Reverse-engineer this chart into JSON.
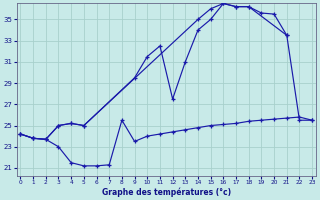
{
  "xlabel": "Graphe des températures (°c)",
  "bg_color": "#c8eae8",
  "line_color": "#1a1aaa",
  "grid_color": "#a8d0cc",
  "yticks": [
    21,
    23,
    25,
    27,
    29,
    31,
    33,
    35
  ],
  "xticks": [
    0,
    1,
    2,
    3,
    4,
    5,
    6,
    7,
    8,
    9,
    10,
    11,
    12,
    13,
    14,
    15,
    16,
    17,
    18,
    19,
    20,
    21,
    22,
    23
  ],
  "ylim": [
    20.2,
    36.5
  ],
  "xlim": [
    -0.3,
    23.3
  ],
  "line_A_x": [
    0,
    1,
    2,
    3,
    4,
    5,
    14,
    15,
    16,
    17,
    18,
    19,
    20,
    21
  ],
  "line_A_y": [
    24.2,
    23.8,
    23.7,
    25.0,
    25.2,
    25.0,
    35.0,
    36.0,
    36.5,
    36.2,
    36.2,
    35.6,
    35.5,
    33.5
  ],
  "line_B_x": [
    0,
    1,
    2,
    3,
    4,
    5,
    9,
    10,
    11,
    12,
    13,
    14,
    15,
    16,
    17,
    18,
    21,
    22,
    23
  ],
  "line_B_y": [
    24.2,
    23.8,
    23.7,
    25.0,
    25.2,
    25.0,
    29.5,
    31.5,
    32.5,
    27.5,
    31.0,
    34.0,
    35.0,
    36.5,
    36.2,
    36.2,
    33.5,
    25.5,
    25.5
  ],
  "line_C_x": [
    0,
    1,
    2,
    3,
    4,
    5,
    6,
    7,
    8,
    9,
    10,
    11,
    12,
    13,
    14,
    15,
    16,
    17,
    18,
    19,
    20,
    21,
    22,
    23
  ],
  "line_C_y": [
    24.2,
    23.8,
    23.7,
    23.0,
    21.5,
    21.2,
    21.2,
    21.3,
    25.5,
    23.5,
    24.0,
    24.2,
    24.4,
    24.6,
    24.8,
    25.0,
    25.1,
    25.2,
    25.4,
    25.5,
    25.6,
    25.7,
    25.8,
    25.5
  ]
}
